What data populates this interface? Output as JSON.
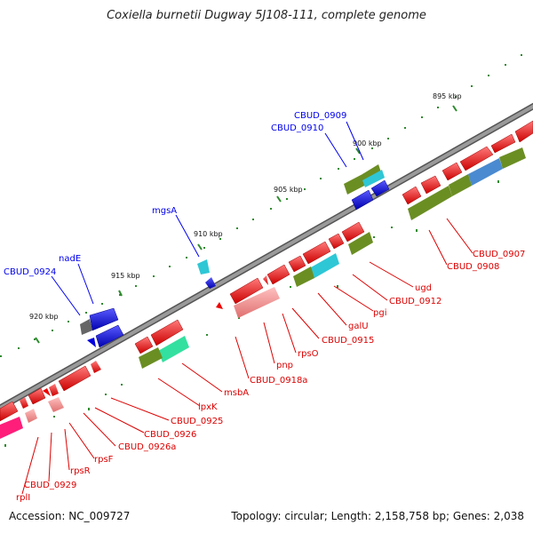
{
  "title": "Coxiella burnetii Dugway 5J108-111, complete genome",
  "footer": {
    "accession": "Accession: NC_009727",
    "topology": "Topology: circular; Length: 2,158,758 bp; Genes: 2,038"
  },
  "scale": {
    "kbp_895": "895 kbp",
    "kbp_900": "900 kbp",
    "kbp_905": "905 kbp",
    "kbp_910": "910 kbp",
    "kbp_915": "915 kbp",
    "kbp_920": "920 kbp"
  },
  "genes": {
    "cbud_0909": "CBUD_0909",
    "cbud_0910": "CBUD_0910",
    "mgsa": "mgsA",
    "nade": "nadE",
    "cbud_0924": "CBUD_0924",
    "cbud_0907": "CBUD_0907",
    "cbud_0908": "CBUD_0908",
    "ugd": "ugd",
    "cbud_0912": "CBUD_0912",
    "pgi": "pgi",
    "galu": "galU",
    "cbud_0915": "CBUD_0915",
    "rpso": "rpsO",
    "pnp": "pnp",
    "cbud_0918a": "CBUD_0918a",
    "msba": "msbA",
    "lpxk": "lpxK",
    "cbud_0925": "CBUD_0925",
    "cbud_0926": "CBUD_0926",
    "cbud_0926a": "CBUD_0926a",
    "rpsf": "rpsF",
    "rpsr": "rpsR",
    "cbud_0929": "CBUD_0929",
    "rpli": "rplI"
  },
  "colors": {
    "cds_forward": "#ff0000",
    "cds_reverse": "#0000ee",
    "cog_olive": "#6b8e23",
    "cog_cyan": "#2ec7d6",
    "cog_mint": "#33e0a0",
    "cog_steel": "#4a8ad0",
    "backbone": "#808080",
    "ticks": "#2e8b2e"
  }
}
